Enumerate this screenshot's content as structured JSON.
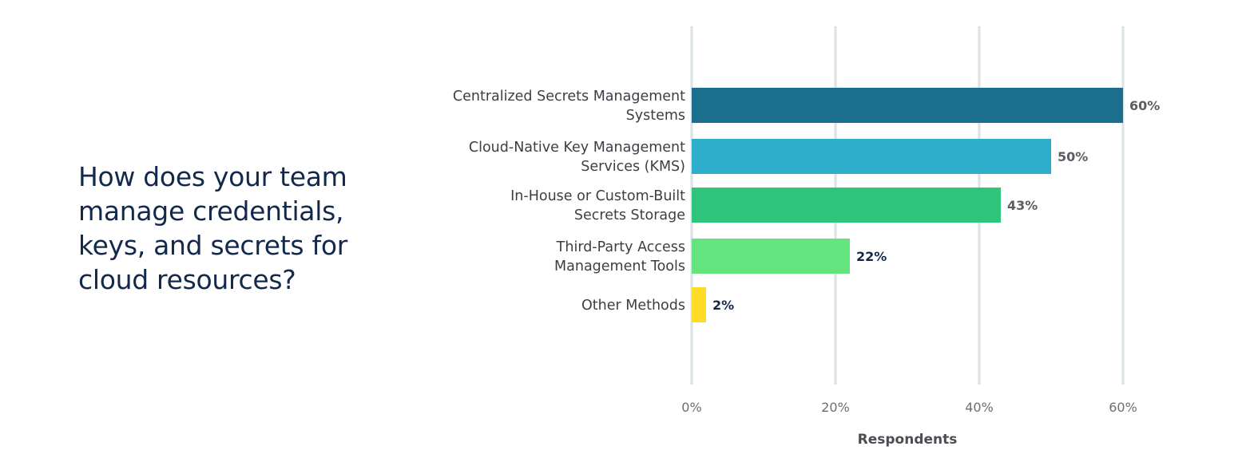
{
  "question": "How does your team manage credentials, keys, and secrets for cloud resources?",
  "chart_data": {
    "type": "bar",
    "orientation": "horizontal",
    "categories": [
      [
        "Centralized Secrets Management",
        "Systems"
      ],
      [
        "Cloud-Native Key Management",
        "Services (KMS)"
      ],
      [
        "In-House or Custom-Built",
        "Secrets Storage"
      ],
      [
        "Third-Party Access",
        "Management Tools"
      ],
      [
        "Other Methods"
      ]
    ],
    "values": [
      60,
      50,
      43,
      22,
      2
    ],
    "value_labels": [
      "60%",
      "50%",
      "43%",
      "22%",
      "2%"
    ],
    "colors": [
      "#1a6e8e",
      "#2eaecb",
      "#2ec479",
      "#63e47e",
      "#fddb26"
    ],
    "value_label_colors": [
      "#5a5e62",
      "#5a5e62",
      "#5a5e62",
      "#13294b",
      "#13294b"
    ],
    "xlabel": "Respondents",
    "xlim": [
      0,
      60
    ],
    "xticks": [
      0,
      20,
      40,
      60
    ],
    "xtick_labels": [
      "0%",
      "20%",
      "40%",
      "60%"
    ],
    "grid": true
  }
}
